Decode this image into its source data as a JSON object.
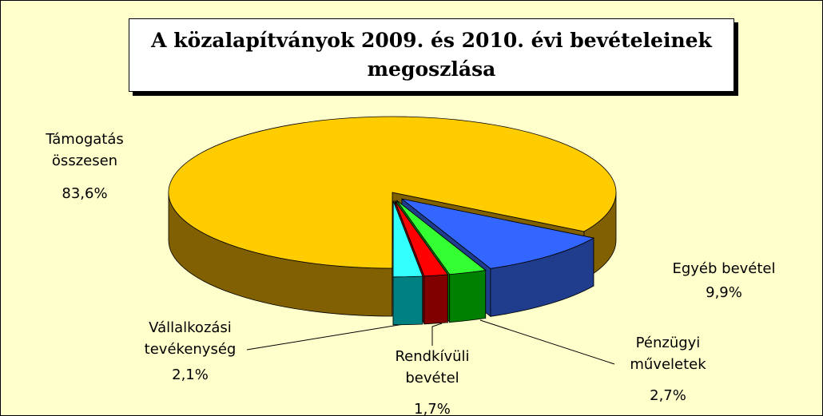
{
  "chart_data": {
    "type": "pie3d",
    "title": "A közalapítványok 2009. és 2010. évi bevételeinek megoszlása",
    "categories": [
      "Egyéb bevétel",
      "Pénzügyi műveletek",
      "Rendkívüli bevétel",
      "Vállalkozási tevékenység",
      "Támogatás összesen"
    ],
    "values": [
      9.9,
      2.7,
      1.7,
      2.1,
      83.6
    ],
    "value_labels": [
      "9,9%",
      "2,7%",
      "1,7%",
      "2,1%",
      "83,6%"
    ],
    "colors": [
      "#3366ff",
      "#33ff33",
      "#ff0000",
      "#33ffff",
      "#ffcc00"
    ],
    "side_colors": [
      "#1f3d8c",
      "#008000",
      "#800000",
      "#008080",
      "#806000"
    ]
  }
}
